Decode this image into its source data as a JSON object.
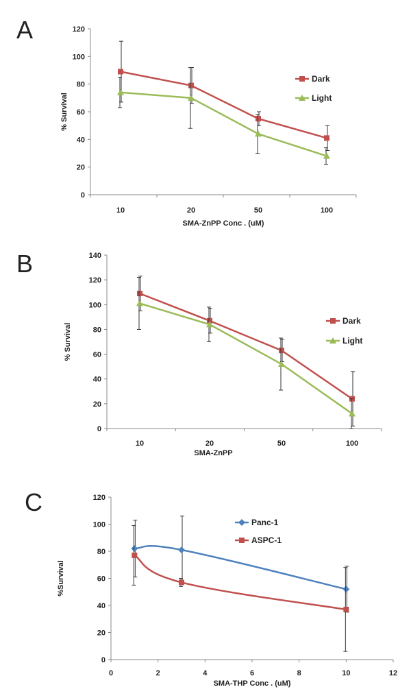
{
  "chart_data": [
    {
      "panel": "A",
      "type": "line",
      "xlabel": "SMA-ZnPP Conc . (uM)",
      "ylabel": "% Survival",
      "ylim": [
        0,
        120
      ],
      "yticks": [
        0,
        20,
        40,
        60,
        80,
        100,
        120
      ],
      "x_scale": "categorical",
      "categories": [
        "10",
        "20",
        "50",
        "100"
      ],
      "legend_position": "right",
      "grid": false,
      "series": [
        {
          "name": "Dark",
          "color": "#c0504d",
          "marker": "square",
          "values": [
            89,
            79,
            55,
            41
          ],
          "errors": [
            22,
            13,
            5,
            9
          ]
        },
        {
          "name": "Light",
          "color": "#9bbb59",
          "marker": "triangle",
          "values": [
            74,
            70,
            44,
            28
          ],
          "errors": [
            11,
            22,
            14,
            6
          ]
        }
      ]
    },
    {
      "panel": "B",
      "type": "line",
      "xlabel": "SMA-ZnPP",
      "ylabel": "% Survival",
      "ylim": [
        0,
        140
      ],
      "yticks": [
        0,
        20,
        40,
        60,
        80,
        100,
        120,
        140
      ],
      "x_scale": "categorical",
      "categories": [
        "10",
        "20",
        "50",
        "100"
      ],
      "legend_position": "right",
      "grid": false,
      "series": [
        {
          "name": "Dark",
          "color": "#c0504d",
          "marker": "square",
          "values": [
            109,
            87,
            63,
            24
          ],
          "errors": [
            14,
            10,
            9,
            22
          ]
        },
        {
          "name": "Light",
          "color": "#9bbb59",
          "marker": "triangle",
          "values": [
            101,
            84,
            52,
            12
          ],
          "errors": [
            21,
            14,
            21,
            12
          ]
        }
      ]
    },
    {
      "panel": "C",
      "type": "line",
      "xlabel": "SMA-THP Conc . (uM)",
      "ylabel": "%Survival",
      "ylim": [
        0,
        120
      ],
      "yticks": [
        0,
        20,
        40,
        60,
        80,
        100,
        120
      ],
      "x_scale": "linear",
      "xlim": [
        0,
        12
      ],
      "xticks": [
        0,
        2,
        4,
        6,
        8,
        10,
        12
      ],
      "legend_position": "top-right",
      "grid": false,
      "smooth": true,
      "series": [
        {
          "name": "Panc-1",
          "color": "#4f81bd",
          "marker": "diamond",
          "x": [
            1,
            3,
            10
          ],
          "values": [
            82,
            81,
            52
          ],
          "errors": [
            21,
            25,
            17
          ]
        },
        {
          "name": "ASPC-1",
          "color": "#c0504d",
          "marker": "square",
          "x": [
            1,
            3,
            10
          ],
          "values": [
            77,
            57,
            37
          ],
          "errors": [
            22,
            3,
            31
          ]
        }
      ]
    }
  ]
}
